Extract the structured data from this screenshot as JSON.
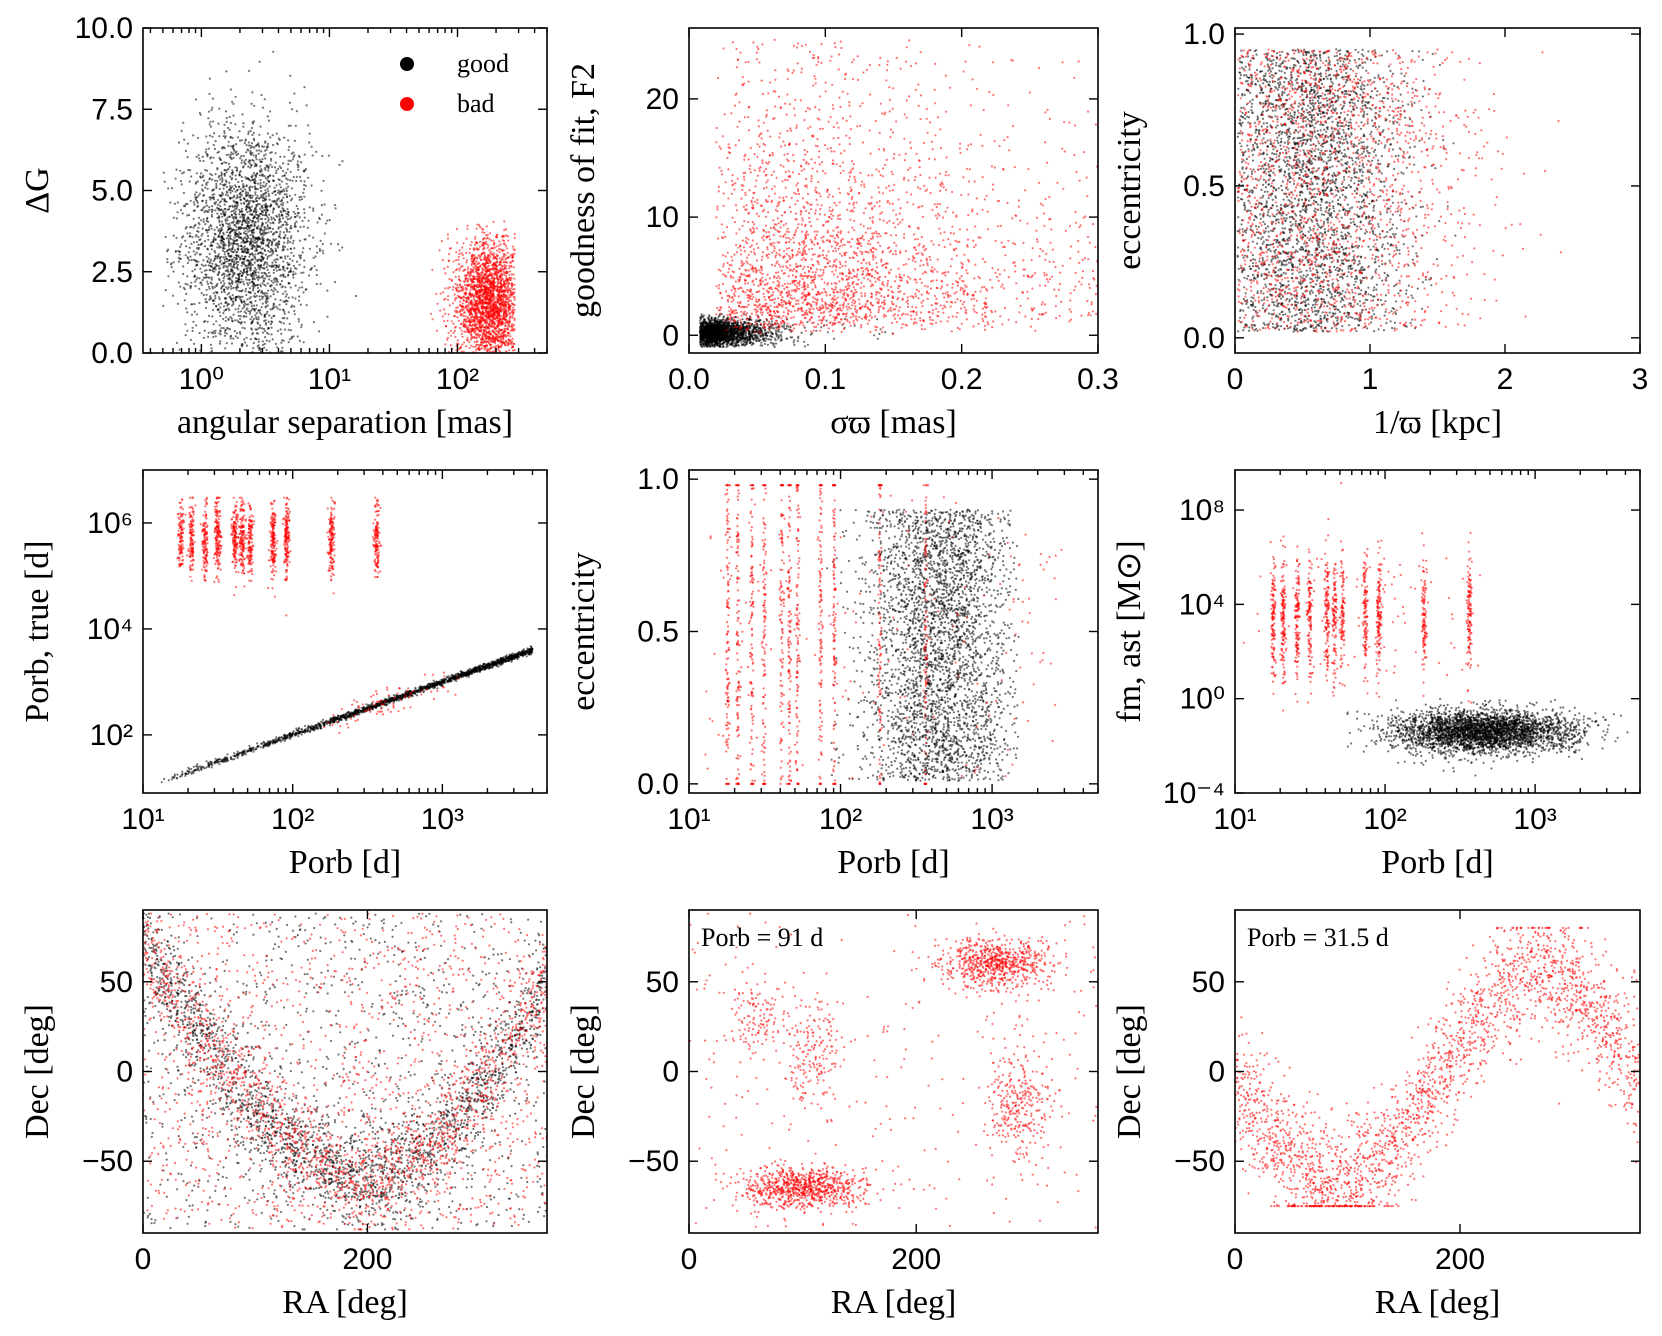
{
  "colors": {
    "good": "#000000",
    "bad": "#ff0000"
  },
  "legend": {
    "good": "good",
    "bad": "bad"
  },
  "chart_data": [
    {
      "id": "p1",
      "type": "scatter",
      "xlabel": "angular separation [mas]",
      "ylabel": "ΔG",
      "xscale": "log",
      "xlim": [
        0.35,
        500
      ],
      "ylim": [
        0,
        10
      ],
      "xticks": [
        {
          "v": 1,
          "t": "10⁰"
        },
        {
          "v": 10,
          "t": "10¹"
        },
        {
          "v": 100,
          "t": "10²"
        }
      ],
      "yticks": [
        {
          "v": 0,
          "t": "0.0"
        },
        {
          "v": 2.5,
          "t": "2.5"
        },
        {
          "v": 5,
          "t": "5.0"
        },
        {
          "v": 7.5,
          "t": "7.5"
        },
        {
          "v": 10,
          "t": "10.0"
        }
      ],
      "legend": "top-right",
      "series": [
        {
          "name": "good",
          "n": 2600,
          "dist": {
            "x": {
              "kind": "lognormal",
              "mu": 0.35,
              "sd": 0.25,
              "min": 0.5,
              "max": 300
            },
            "y": {
              "kind": "normal",
              "mu": 3.5,
              "sd": 1.8,
              "min": 0,
              "max": 10
            }
          }
        },
        {
          "name": "bad",
          "n": 2200,
          "dist": {
            "x": {
              "kind": "lognormal",
              "mu": 2.25,
              "sd": 0.13,
              "min": 50,
              "max": 280
            },
            "y": {
              "kind": "normal",
              "mu": 1.5,
              "sd": 1.0,
              "min": 0,
              "max": 4.1
            }
          }
        }
      ]
    },
    {
      "id": "p2",
      "type": "scatter",
      "xlabel": "σϖ [mas]",
      "ylabel": "goodness of fit,  F2",
      "xlim": [
        0,
        0.3
      ],
      "ylim": [
        -1.5,
        26
      ],
      "xticks": [
        {
          "v": 0,
          "t": "0.0"
        },
        {
          "v": 0.1,
          "t": "0.1"
        },
        {
          "v": 0.2,
          "t": "0.2"
        },
        {
          "v": 0.3,
          "t": "0.3"
        }
      ],
      "yticks": [
        {
          "v": 0,
          "t": "0"
        },
        {
          "v": 10,
          "t": "10"
        },
        {
          "v": 20,
          "t": "20"
        }
      ],
      "series": [
        {
          "name": "good",
          "n": 2000,
          "dist": {
            "x": {
              "kind": "lognormal",
              "mu": -1.65,
              "sd": 0.25,
              "min": 0.008,
              "max": 0.2
            },
            "y": {
              "kind": "normal",
              "mu": 0.2,
              "sd": 0.6,
              "min": -1,
              "max": 1.8
            }
          }
        },
        {
          "name": "bad",
          "n": 2600,
          "dist": {
            "x": {
              "kind": "lognormal",
              "mu": -0.95,
              "sd": 0.3,
              "min": 0.02,
              "max": 0.3
            },
            "y": {
              "kind": "lognormal",
              "mu": 0.85,
              "sd": 0.45,
              "min": 0,
              "max": 25
            }
          }
        }
      ]
    },
    {
      "id": "p3",
      "type": "scatter",
      "xlabel": "1/ϖ [kpc]",
      "ylabel": "eccentricity",
      "xlim": [
        0,
        3
      ],
      "ylim": [
        -0.05,
        1.02
      ],
      "xticks": [
        {
          "v": 0,
          "t": "0"
        },
        {
          "v": 1,
          "t": "1"
        },
        {
          "v": 2,
          "t": "2"
        },
        {
          "v": 3,
          "t": "3"
        }
      ],
      "yticks": [
        {
          "v": 0,
          "t": "0.0"
        },
        {
          "v": 0.5,
          "t": "0.5"
        },
        {
          "v": 1,
          "t": "1.0"
        }
      ],
      "series": [
        {
          "name": "good",
          "n": 2800,
          "dist": {
            "x": {
              "kind": "gamma",
              "mu": 0.55,
              "sd": 0.35,
              "min": 0.02,
              "max": 3
            },
            "y": {
              "kind": "uniform",
              "min": 0.02,
              "max": 0.95
            }
          }
        },
        {
          "name": "bad",
          "n": 1800,
          "dist": {
            "x": {
              "kind": "gamma",
              "mu": 0.7,
              "sd": 0.55,
              "min": 0.02,
              "max": 3
            },
            "y": {
              "kind": "uniform",
              "min": 0.02,
              "max": 0.95
            }
          }
        }
      ]
    },
    {
      "id": "p4",
      "type": "scatter",
      "xlabel": "Porb [d]",
      "ylabel": "Porb, true [d]",
      "xscale": "log",
      "yscale": "log",
      "xlim": [
        10,
        5000
      ],
      "ylim": [
        8,
        10000000
      ],
      "xticks": [
        {
          "v": 10,
          "t": "10¹"
        },
        {
          "v": 100,
          "t": "10²"
        },
        {
          "v": 1000,
          "t": "10³"
        }
      ],
      "yticks": [
        {
          "v": 100,
          "t": "10²"
        },
        {
          "v": 10000,
          "t": "10⁴"
        },
        {
          "v": 1000000,
          "t": "10⁶"
        }
      ],
      "alias_periods": [
        18,
        21,
        26,
        31.5,
        41,
        46,
        52,
        74,
        91,
        182,
        365
      ],
      "series": [
        {
          "name": "good",
          "n": 1800,
          "dist": {
            "kind": "diagonal",
            "xmin": 12,
            "xmax": 4000,
            "scatter": 0.03
          }
        },
        {
          "name": "bad",
          "n": 1600,
          "dist": {
            "kind": "alias_columns",
            "ymu": 500000,
            "ysd": 0.6,
            "extra_diag": 80
          }
        }
      ]
    },
    {
      "id": "p5",
      "type": "scatter",
      "xlabel": "Porb [d]",
      "ylabel": "eccentricity",
      "xscale": "log",
      "xlim": [
        10,
        5000
      ],
      "ylim": [
        -0.03,
        1.03
      ],
      "xticks": [
        {
          "v": 10,
          "t": "10¹"
        },
        {
          "v": 100,
          "t": "10²"
        },
        {
          "v": 1000,
          "t": "10³"
        }
      ],
      "yticks": [
        {
          "v": 0,
          "t": "0.0"
        },
        {
          "v": 0.5,
          "t": "0.5"
        },
        {
          "v": 1,
          "t": "1.0"
        }
      ],
      "alias_periods": [
        18,
        21,
        26,
        31.5,
        41,
        46,
        52,
        74,
        91,
        182,
        365
      ],
      "series": [
        {
          "name": "good",
          "n": 3200,
          "dist": {
            "x": {
              "kind": "lognormal",
              "mu": 2.65,
              "sd": 0.25,
              "min": 80,
              "max": 1500
            },
            "y": {
              "kind": "uniform",
              "min": 0.01,
              "max": 0.9
            }
          }
        },
        {
          "name": "bad",
          "n": 1400,
          "dist": {
            "kind": "alias_columns_ecc"
          }
        }
      ]
    },
    {
      "id": "p6",
      "type": "scatter",
      "xlabel": "Porb [d]",
      "ylabel": "fm, ast [M⊙]",
      "xscale": "log",
      "yscale": "log",
      "xlim": [
        10,
        5000
      ],
      "ylim": [
        0.0001,
        5000000000
      ],
      "xticks": [
        {
          "v": 10,
          "t": "10¹"
        },
        {
          "v": 100,
          "t": "10²"
        },
        {
          "v": 1000,
          "t": "10³"
        }
      ],
      "yticks": [
        {
          "v": 0.0001,
          "t": "10⁻⁴"
        },
        {
          "v": 1,
          "t": "10⁰"
        },
        {
          "v": 10000,
          "t": "10⁴"
        },
        {
          "v": 100000000,
          "t": "10⁸"
        }
      ],
      "alias_periods": [
        18,
        21,
        26,
        31.5,
        41,
        46,
        52,
        74,
        91,
        182,
        365
      ],
      "series": [
        {
          "name": "good",
          "n": 3200,
          "dist": {
            "x": {
              "kind": "lognormal",
              "mu": 2.65,
              "sd": 0.3,
              "min": 50,
              "max": 4500
            },
            "y": {
              "kind": "lognormal",
              "mu": -1.4,
              "sd": 0.45,
              "min": 0.0002,
              "max": 1
            }
          }
        },
        {
          "name": "bad",
          "n": 1400,
          "dist": {
            "kind": "alias_columns_fm",
            "ymu": 3000,
            "ysd": 1.0
          }
        }
      ]
    },
    {
      "id": "p7",
      "type": "scatter",
      "xlabel": "RA [deg]",
      "ylabel": "Dec [deg]",
      "xlim": [
        0,
        360
      ],
      "ylim": [
        -90,
        90
      ],
      "xticks": [
        {
          "v": 0,
          "t": "0"
        },
        {
          "v": 200,
          "t": "200"
        }
      ],
      "yticks": [
        {
          "v": -50,
          "t": "−50"
        },
        {
          "v": 0,
          "t": "0"
        },
        {
          "v": 50,
          "t": "50"
        }
      ],
      "series": [
        {
          "name": "good",
          "n": 3000,
          "dist": {
            "kind": "galactic_band",
            "bg": 0.35
          }
        },
        {
          "name": "bad",
          "n": 2600,
          "dist": {
            "kind": "galactic_band",
            "bg": 0.5
          }
        }
      ]
    },
    {
      "id": "p8",
      "type": "scatter",
      "xlabel": "RA [deg]",
      "ylabel": "Dec [deg]",
      "annotation": "Porb = 91 d",
      "xlim": [
        0,
        360
      ],
      "ylim": [
        -90,
        90
      ],
      "xticks": [
        {
          "v": 0,
          "t": "0"
        },
        {
          "v": 200,
          "t": "200"
        }
      ],
      "yticks": [
        {
          "v": -50,
          "t": "−50"
        },
        {
          "v": 0,
          "t": "0"
        },
        {
          "v": 50,
          "t": "50"
        }
      ],
      "series": [
        {
          "name": "bad",
          "n": 2400,
          "dist": {
            "kind": "clumps",
            "clumps": [
              [
                100,
                -65,
                45,
                10,
                0.35
              ],
              [
                270,
                60,
                40,
                12,
                0.3
              ],
              [
                290,
                -20,
                25,
                25,
                0.12
              ],
              [
                110,
                10,
                25,
                25,
                0.08
              ],
              [
                60,
                30,
                20,
                20,
                0.05
              ]
            ],
            "bg": 0.1
          }
        }
      ]
    },
    {
      "id": "p9",
      "type": "scatter",
      "xlabel": "RA [deg]",
      "ylabel": "Dec [deg]",
      "annotation": "Porb = 31.5 d",
      "xlim": [
        0,
        360
      ],
      "ylim": [
        -90,
        90
      ],
      "xticks": [
        {
          "v": 0,
          "t": "0"
        },
        {
          "v": 200,
          "t": "200"
        }
      ],
      "yticks": [
        {
          "v": -50,
          "t": "−50"
        },
        {
          "v": 0,
          "t": "0"
        },
        {
          "v": 50,
          "t": "50"
        }
      ],
      "series": [
        {
          "name": "bad",
          "n": 2400,
          "dist": {
            "kind": "ecliptic_band"
          }
        }
      ]
    }
  ]
}
